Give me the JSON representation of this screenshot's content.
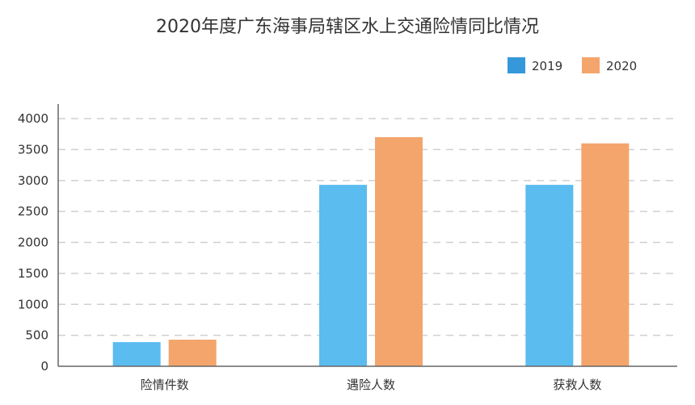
{
  "chart_data": {
    "type": "bar",
    "title": "2020年度广东海事局辖区水上交通险情同比情况",
    "categories": [
      "险情件数",
      "遇险人数",
      "获救人数"
    ],
    "series": [
      {
        "name": "2019",
        "values": [
          390,
          2930,
          2930
        ],
        "color": "#5bbcef",
        "legend_color": "#3498db"
      },
      {
        "name": "2020",
        "values": [
          430,
          3700,
          3600
        ],
        "color": "#f4a56c",
        "legend_color": "#f4a56c"
      }
    ],
    "ylim": [
      0,
      4000
    ],
    "yticks": [
      0,
      500,
      1000,
      1500,
      2000,
      2500,
      3000,
      3500,
      4000
    ],
    "grid": true,
    "legend_position": "top-right"
  }
}
